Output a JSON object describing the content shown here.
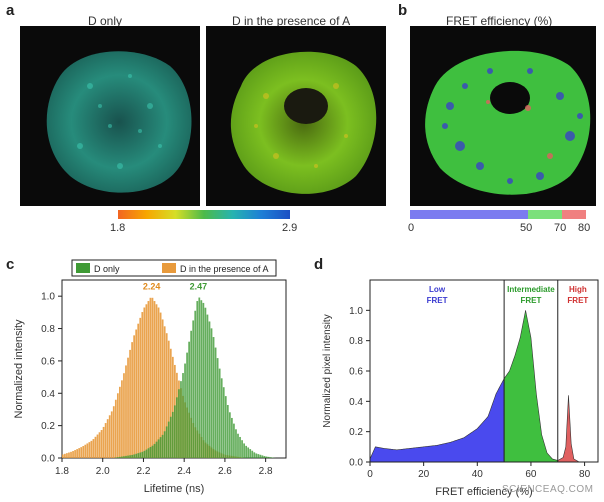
{
  "panels": {
    "a": {
      "letter": "a",
      "left_caption": "D only",
      "right_caption": "D in the presence of A",
      "colorbar": {
        "min_label": "1.8",
        "max_label": "2.9",
        "colors": [
          "#f26522",
          "#f7a600",
          "#d6de26",
          "#4dba4a",
          "#26b3b0",
          "#1e7fd6",
          "#1b4fc4"
        ]
      }
    },
    "b": {
      "letter": "b",
      "caption": "FRET efficiency (%)",
      "scale": {
        "labels": [
          "0",
          "50",
          "70",
          "80"
        ],
        "segments": [
          {
            "from": 0,
            "to": 50,
            "color": "#7b7bf0"
          },
          {
            "from": 50,
            "to": 70,
            "color": "#7be07b"
          },
          {
            "from": 70,
            "to": 80,
            "color": "#f08080"
          }
        ]
      }
    },
    "c": {
      "letter": "c"
    },
    "d": {
      "letter": "d"
    }
  },
  "watermark": "SCIENCEAQ.COM",
  "chart_data": [
    {
      "panel": "c",
      "type": "bar",
      "xlabel": "Lifetime (ns)",
      "ylabel": "Normalized intensity",
      "xlim": [
        1.8,
        2.9
      ],
      "ylim": [
        0,
        1.1
      ],
      "xticks": [
        "1.8",
        "2.0",
        "2.2",
        "2.4",
        "2.6",
        "2.8"
      ],
      "yticks": [
        "0.0",
        "0.2",
        "0.4",
        "0.6",
        "0.8",
        "1.0"
      ],
      "legend": {
        "placement": "top"
      },
      "annotations": [
        {
          "text": "2.24",
          "x": 2.24,
          "color": "#e08b1e"
        },
        {
          "text": "2.47",
          "x": 2.47,
          "color": "#3f9a35"
        }
      ],
      "series": [
        {
          "name": "D in the presence of A",
          "color": "#e89a3c",
          "x": [
            1.8,
            1.85,
            1.9,
            1.95,
            2.0,
            2.05,
            2.1,
            2.15,
            2.2,
            2.24,
            2.28,
            2.32,
            2.36,
            2.4,
            2.45,
            2.5,
            2.55,
            2.6,
            2.65,
            2.7,
            2.75,
            2.8
          ],
          "values": [
            0.02,
            0.04,
            0.07,
            0.11,
            0.18,
            0.3,
            0.5,
            0.74,
            0.92,
            1.0,
            0.92,
            0.75,
            0.55,
            0.36,
            0.2,
            0.1,
            0.05,
            0.02,
            0.01,
            0.0,
            0.0,
            0.0
          ]
        },
        {
          "name": "D only",
          "color": "#3f9a35",
          "x": [
            2.05,
            2.1,
            2.15,
            2.2,
            2.25,
            2.3,
            2.35,
            2.4,
            2.44,
            2.47,
            2.5,
            2.54,
            2.58,
            2.62,
            2.66,
            2.7,
            2.75,
            2.8,
            2.85
          ],
          "values": [
            0.0,
            0.01,
            0.02,
            0.04,
            0.08,
            0.15,
            0.3,
            0.55,
            0.82,
            1.0,
            0.95,
            0.78,
            0.52,
            0.3,
            0.16,
            0.08,
            0.03,
            0.01,
            0.0
          ]
        }
      ]
    },
    {
      "panel": "d",
      "type": "area",
      "xlabel": "FRET efficiency (%)",
      "ylabel": "Normalized pixel intensity",
      "xlim": [
        0,
        85
      ],
      "ylim": [
        0,
        1.2
      ],
      "xticks": [
        "0",
        "20",
        "40",
        "60",
        "80"
      ],
      "yticks": [
        "0.0",
        "0.2",
        "0.4",
        "0.6",
        "0.8",
        "1.0"
      ],
      "regions": [
        {
          "title": [
            "Low",
            "FRET"
          ],
          "from": 0,
          "to": 50,
          "color": "#4a4aee",
          "title_color": "#3a3ad0"
        },
        {
          "title": [
            "Intermediate",
            "FRET"
          ],
          "from": 50,
          "to": 70,
          "color": "#3fbf3f",
          "title_color": "#2a9a2a"
        },
        {
          "title": [
            "High",
            "FRET"
          ],
          "from": 70,
          "to": 85,
          "color": "#e06060",
          "title_color": "#d03030"
        }
      ],
      "series": [
        {
          "x": [
            0,
            2,
            5,
            10,
            15,
            20,
            25,
            30,
            35,
            40,
            44,
            47,
            50,
            52,
            54,
            56,
            58,
            60,
            62,
            64,
            66,
            68,
            70,
            72,
            73,
            74,
            75,
            76,
            78,
            80,
            85
          ],
          "values": [
            0.02,
            0.1,
            0.09,
            0.08,
            0.09,
            0.1,
            0.11,
            0.13,
            0.16,
            0.22,
            0.3,
            0.45,
            0.55,
            0.6,
            0.7,
            0.82,
            1.0,
            0.82,
            0.45,
            0.18,
            0.06,
            0.02,
            0.01,
            0.03,
            0.1,
            0.44,
            0.12,
            0.02,
            0.0,
            0.0,
            0.0
          ]
        }
      ]
    }
  ]
}
